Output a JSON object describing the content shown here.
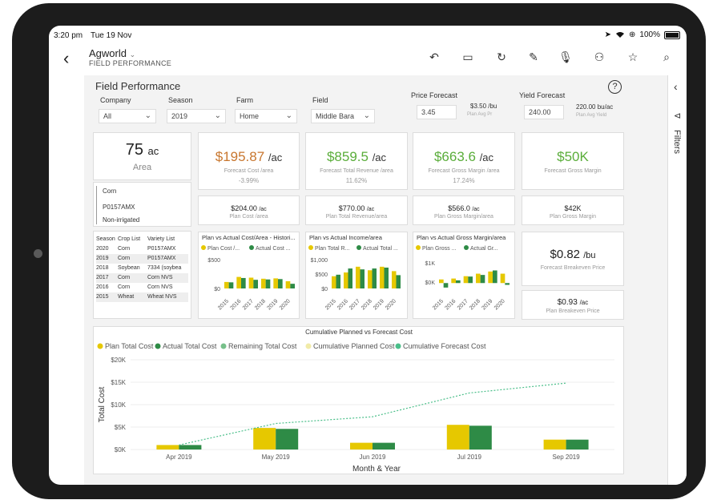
{
  "status": {
    "time": "3:20 pm",
    "date": "Tue 19 Nov",
    "battery": "100%"
  },
  "appbar": {
    "back_icon": "‹",
    "title": "Agworld",
    "title_chevron": "⌄",
    "subtitle": "FIELD PERFORMANCE"
  },
  "report": {
    "title": "Field Performance",
    "help_icon": "?",
    "filters": {
      "company": {
        "label": "Company",
        "value": "All"
      },
      "season": {
        "label": "Season",
        "value": "2019"
      },
      "farm": {
        "label": "Farm",
        "value": "Home"
      },
      "field": {
        "label": "Field",
        "value": "Middle Bara"
      },
      "price": {
        "label": "Price Forecast",
        "value": "3.45",
        "unit_value": "$3.50 /bu",
        "unit_sub": "Plan Avg Pr"
      },
      "yield": {
        "label": "Yield Forecast",
        "value": "240.00",
        "unit_value": "220.00 bu/ac",
        "unit_sub": "Plan Avg Yield"
      }
    },
    "area": {
      "value": "75",
      "unit": "ac",
      "label": "Area"
    },
    "crop_info": [
      "Corn",
      "P0157AMX",
      "Non-irrigated"
    ],
    "kpis": [
      {
        "value": "$195.87",
        "unit": "/ac",
        "label": "Forecast Cost /area",
        "pct": "-3.99%",
        "color": "#c8762e"
      },
      {
        "value": "$859.5",
        "unit": "/ac",
        "label": "Forecast Total Revenue /area",
        "pct": "11.62%",
        "color": "#5aad3a"
      },
      {
        "value": "$663.6",
        "unit": "/ac",
        "label": "Forecast Gross Margin /area",
        "pct": "17.24%",
        "color": "#5aad3a"
      },
      {
        "value": "$50K",
        "unit": "",
        "label": "Forecast Gross Margin",
        "pct": "",
        "color": "#5aad3a"
      }
    ],
    "plans": [
      {
        "value": "$204.00",
        "unit": "/ac",
        "label": "Plan Cost /area"
      },
      {
        "value": "$770.00",
        "unit": "/ac",
        "label": "Plan Total Revenue/area"
      },
      {
        "value": "$566.0",
        "unit": "/ac",
        "label": "Plan Gross Margin/area"
      },
      {
        "value": "$42K",
        "unit": "",
        "label": "Plan Gross Margin"
      }
    ],
    "history": {
      "headers": [
        "Season",
        "Crop List",
        "Variety List"
      ],
      "rows": [
        [
          "2020",
          "Corn",
          "P0157AMX"
        ],
        [
          "2019",
          "Corn",
          "P0157AMX"
        ],
        [
          "2018",
          "Soybean",
          "7334 (soybea"
        ],
        [
          "2017",
          "Corn",
          "Corn NVS"
        ],
        [
          "2016",
          "Corn",
          "Corn NVS"
        ],
        [
          "2015",
          "Wheat",
          "Wheat NVS"
        ]
      ]
    },
    "breakeven": [
      {
        "value": "$0.82",
        "unit": "/bu",
        "label": "Forecast Breakeven Price"
      },
      {
        "value": "$0.93",
        "unit": "/ac",
        "label": "Plan Breakeven Price"
      }
    ]
  },
  "chart_data": [
    {
      "type": "bar",
      "title": "Plan vs Actual Cost/Area - Histori...",
      "legend": [
        "Plan Cost /...",
        "Actual Cost ..."
      ],
      "categories": [
        "2015",
        "2016",
        "2017",
        "2018",
        "2019",
        "2020"
      ],
      "yticks": [
        "$500",
        "$0"
      ],
      "ylim": [
        0,
        800
      ],
      "series": [
        {
          "name": "Plan Cost /...",
          "color": "#e6c800",
          "values": [
            180,
            320,
            300,
            270,
            280,
            200
          ]
        },
        {
          "name": "Actual Cost ...",
          "color": "#2e8b46",
          "values": [
            170,
            290,
            240,
            250,
            260,
            130
          ]
        }
      ]
    },
    {
      "type": "bar",
      "title": "Plan vs Actual Income/area",
      "legend": [
        "Plan Total R...",
        "Actual Total ..."
      ],
      "categories": [
        "2015",
        "2016",
        "2017",
        "2018",
        "2019",
        "2020"
      ],
      "yticks": [
        "$1,000",
        "$500",
        "$0"
      ],
      "ylim": [
        0,
        1300
      ],
      "series": [
        {
          "name": "Plan Total R...",
          "color": "#e6c800",
          "values": [
            550,
            720,
            980,
            820,
            980,
            780
          ]
        },
        {
          "name": "Actual Total ...",
          "color": "#2e8b46",
          "values": [
            620,
            900,
            860,
            900,
            940,
            600
          ]
        }
      ]
    },
    {
      "type": "bar",
      "title": "Plan vs Actual Gross Margin/area",
      "legend": [
        "Plan Gross ...",
        "Actual Gr..."
      ],
      "categories": [
        "2015",
        "2016",
        "2017",
        "2018",
        "2019",
        "2020"
      ],
      "yticks": [
        "$1K",
        "$0K"
      ],
      "ylim": [
        -300,
        1300
      ],
      "series": [
        {
          "name": "Plan Gross ...",
          "color": "#e6c800",
          "values": [
            200,
            250,
            380,
            520,
            640,
            520
          ]
        },
        {
          "name": "Actual Gr...",
          "color": "#2e8b46",
          "values": [
            -250,
            150,
            360,
            450,
            700,
            -100
          ]
        }
      ]
    },
    {
      "type": "bar",
      "title": "Cumulative Planned vs Forecast Cost",
      "xlabel": "Month & Year",
      "ylabel": "Total Cost",
      "categories": [
        "Apr 2019",
        "May 2019",
        "Jun 2019",
        "Jul 2019",
        "Sep 2019"
      ],
      "yticks": [
        "$20K",
        "$15K",
        "$10K",
        "$5K",
        "$0K"
      ],
      "ylim": [
        0,
        20000
      ],
      "legend": [
        "Plan Total Cost",
        "Actual Total Cost",
        "Remaining Total Cost",
        "Cumulative Planned Cost",
        "Cumulative Forecast Cost"
      ],
      "legend_colors": [
        "#e6c800",
        "#2e8b46",
        "#77c08a",
        "#f1eba8",
        "#4bbf8a"
      ],
      "series": [
        {
          "name": "Plan Total Cost",
          "color": "#e6c800",
          "values": [
            1000,
            4800,
            1500,
            5500,
            2200
          ]
        },
        {
          "name": "Actual Total Cost",
          "color": "#2e8b46",
          "values": [
            1000,
            4600,
            1500,
            5300,
            2200
          ]
        },
        {
          "name": "Cumulative Forecast Cost",
          "color": "#4bbf8a",
          "values": [
            1000,
            5800,
            7300,
            12600,
            14800
          ],
          "line": true
        }
      ]
    }
  ]
}
